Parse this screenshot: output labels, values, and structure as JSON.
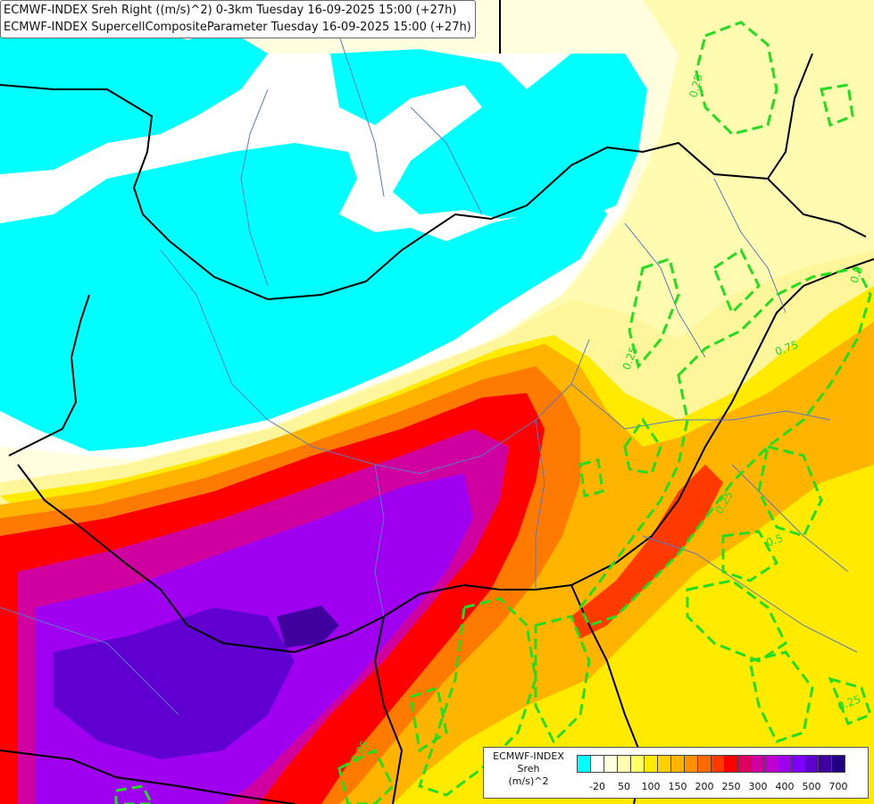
{
  "title_lines": [
    "ECMWF-INDEX Sreh Right ((m/s)^2) 0-3km Tuesday 16-09-2025 15:00 (+27h)",
    "ECMWF-INDEX SupercellCompositeParameter Tuesday 16-09-2025 15:00 (+27h)"
  ],
  "legend": {
    "title_lines": [
      "ECMWF-INDEX",
      "Sreh",
      "(m/s)^2"
    ],
    "colors": [
      "#00ffff",
      "#ffffff",
      "#ffffe0",
      "#ffffb0",
      "#ffff66",
      "#ffea00",
      "#ffd000",
      "#ffb400",
      "#ff9000",
      "#ff6a00",
      "#ff3a00",
      "#ff0000",
      "#e00060",
      "#d000a0",
      "#c000d0",
      "#a000f0",
      "#8000ff",
      "#6000d0",
      "#4000a0",
      "#200080"
    ],
    "tick_labels": [
      {
        "label": "-20",
        "index": 1
      },
      {
        "label": "50",
        "index": 3
      },
      {
        "label": "100",
        "index": 5
      },
      {
        "label": "150",
        "index": 7
      },
      {
        "label": "200",
        "index": 9
      },
      {
        "label": "250",
        "index": 11
      },
      {
        "label": "300",
        "index": 13
      },
      {
        "label": "400",
        "index": 15
      },
      {
        "label": "500",
        "index": 17
      },
      {
        "label": "700",
        "index": 19
      }
    ]
  },
  "contour_labels": [
    "0.25",
    "0.75",
    "0.25",
    "0.5",
    "0.25",
    "0.5",
    "0.25",
    "0.25"
  ],
  "colors": {
    "cyan": "#00ffff",
    "contour": "#22dd22",
    "border": "#000000",
    "river": "#5a78c8"
  }
}
